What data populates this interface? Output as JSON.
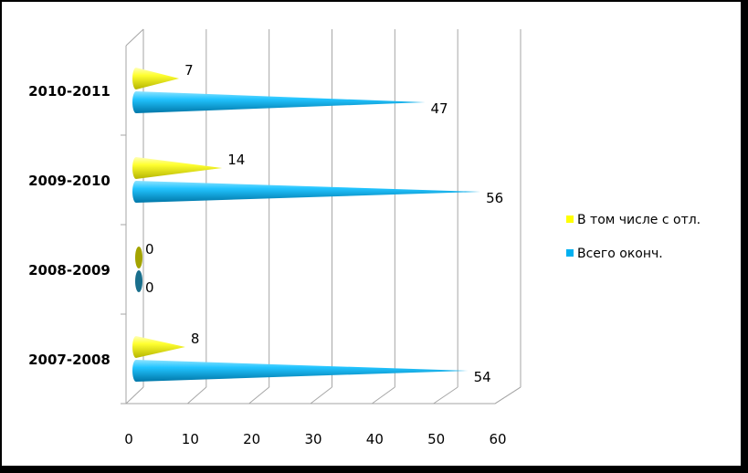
{
  "chart_data": {
    "type": "bar",
    "orientation": "horizontal",
    "bar_shape": "3d-cone",
    "categories": [
      "2007-2008",
      "2008-2009",
      "2009-2010",
      "2010-2011"
    ],
    "series": [
      {
        "name": "Всего оконч.",
        "color": "#00b0f0",
        "values": [
          54,
          0,
          56,
          47
        ]
      },
      {
        "name": "В том числе с отл.",
        "color": "#ffff00",
        "values": [
          8,
          0,
          14,
          7
        ]
      }
    ],
    "xlim": [
      0,
      60
    ],
    "xticks": [
      "0",
      "10",
      "20",
      "30",
      "40",
      "50",
      "60"
    ],
    "grid": true,
    "legend": "right"
  }
}
